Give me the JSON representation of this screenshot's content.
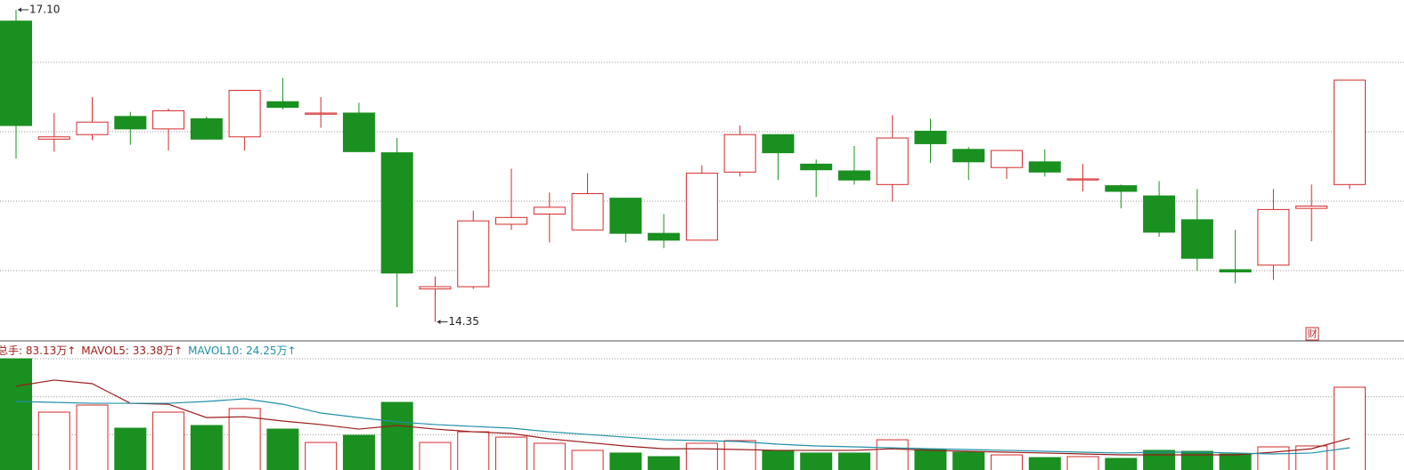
{
  "chart_data": [
    {
      "type": "candlestick",
      "open": [
        17.0,
        15.96,
        16.0,
        16.16,
        16.05,
        16.14,
        15.98,
        16.29,
        16.18,
        16.19,
        15.84,
        14.64,
        14.66,
        15.21,
        15.3,
        15.16,
        15.44,
        15.13,
        15.07,
        15.67,
        16.0,
        15.74,
        15.68,
        15.56,
        16.03,
        15.87,
        15.71,
        15.76,
        15.6,
        15.55,
        15.46,
        15.25,
        14.81,
        14.85,
        15.35,
        15.56
      ],
      "high": [
        17.1,
        16.19,
        16.33,
        16.2,
        16.23,
        16.16,
        16.39,
        16.5,
        16.33,
        16.28,
        15.97,
        14.75,
        15.33,
        15.7,
        15.49,
        15.66,
        15.44,
        15.3,
        15.73,
        16.08,
        16.0,
        15.78,
        15.9,
        16.17,
        16.14,
        15.89,
        15.86,
        15.87,
        15.74,
        15.56,
        15.59,
        15.52,
        15.16,
        15.52,
        15.56,
        16.48
      ],
      "low": [
        15.79,
        15.85,
        15.95,
        15.91,
        15.86,
        15.96,
        15.86,
        16.22,
        16.06,
        15.85,
        14.48,
        14.35,
        14.64,
        15.16,
        15.05,
        15.16,
        15.05,
        15.0,
        15.07,
        15.63,
        15.6,
        15.45,
        15.56,
        15.41,
        15.75,
        15.6,
        15.61,
        15.63,
        15.5,
        15.35,
        15.1,
        14.8,
        14.69,
        14.72,
        15.06,
        15.52
      ],
      "close": [
        16.08,
        15.98,
        16.11,
        16.05,
        16.21,
        15.96,
        16.39,
        16.24,
        16.19,
        15.85,
        14.78,
        14.66,
        15.24,
        15.27,
        15.36,
        15.48,
        15.13,
        15.07,
        15.66,
        16.0,
        15.84,
        15.69,
        15.6,
        15.97,
        15.92,
        15.76,
        15.86,
        15.67,
        15.61,
        15.5,
        15.14,
        14.91,
        14.79,
        15.34,
        15.37,
        16.48
      ],
      "up_color": "#d42a2a",
      "down_color": "#1a9020",
      "ylim": [
        14.19,
        17.186
      ],
      "annotations": [
        {
          "value": 17.1,
          "label": "17.10"
        },
        {
          "value": 14.35,
          "label": "14.35"
        }
      ],
      "badge": "财"
    },
    {
      "type": "volume",
      "header": [
        "总手: 83.13万↑",
        "MAVOL5: 33.38万↑",
        "MAVOL10: 24.25万↑"
      ],
      "header_colors": [
        "#a0201c",
        "#a0201c",
        "#2090a8"
      ],
      "values": [
        110.8,
        58.9,
        65.8,
        43.3,
        58.9,
        45.9,
        62.4,
        42.4,
        29.4,
        36.4,
        68.4,
        29.4,
        39.8,
        34.6,
        28.6,
        21.7,
        19.1,
        15.6,
        28.6,
        31.2,
        21.7,
        19.1,
        19.1,
        32.0,
        22.5,
        19.9,
        17.3,
        14.7,
        15.6,
        13.9,
        21.7,
        20.8,
        18.2,
        25.1,
        26.0,
        83.13
      ],
      "ylim": [
        0,
        110.85
      ],
      "series": [
        {
          "color": "#9b1c1c",
          "values": [
            84.1,
            90.1,
            86.6,
            67.5,
            66.6,
            53.6,
            54.4,
            50.2,
            46.8,
            42.4,
            45.9,
            42.4,
            39.8,
            38.1,
            32.9,
            29.4,
            25.9,
            23.3,
            23.3,
            22.5,
            21.7,
            21.7,
            21.7,
            23.3,
            21.7,
            20.8,
            19.9,
            19.1,
            18.2,
            17.3,
            17.3,
            17.3,
            17.3,
            19.9,
            23.3,
            33.38
          ]
        },
        {
          "color": "#2090a8",
          "values": [
            69.3,
            68.4,
            67.5,
            67.5,
            67.5,
            69.3,
            71.9,
            66.6,
            58.0,
            53.6,
            49.4,
            46.8,
            45.0,
            43.3,
            39.8,
            37.2,
            34.6,
            32.0,
            31.2,
            30.3,
            27.7,
            26.0,
            25.1,
            24.2,
            23.3,
            22.5,
            21.7,
            20.8,
            19.9,
            19.1,
            19.9,
            19.9,
            19.1,
            18.2,
            19.1,
            24.25
          ]
        }
      ]
    }
  ]
}
